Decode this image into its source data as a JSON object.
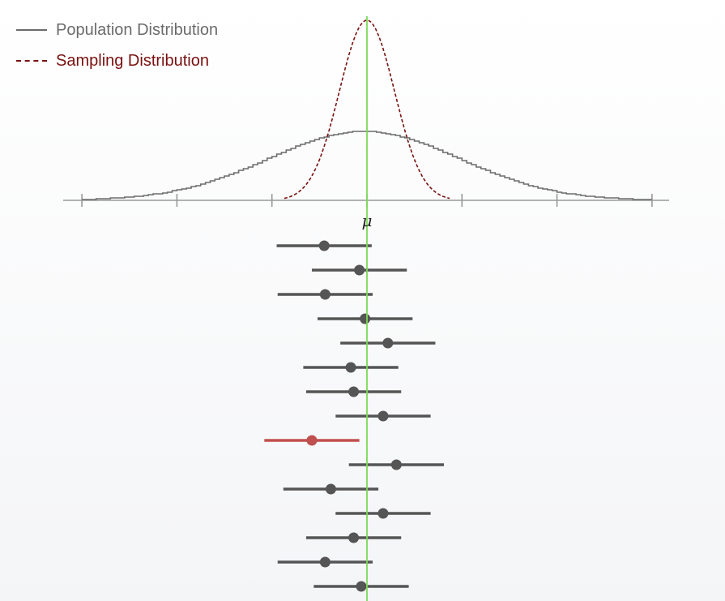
{
  "legend": {
    "population_label": "Population Distribution",
    "sampling_label": "Sampling Distribution"
  },
  "colors": {
    "population": "#6b6b6b",
    "sampling": "#7a1010",
    "mean_line": "#7ed957",
    "interval": "#555555",
    "interval_miss": "#c0504d",
    "axis": "#999999"
  },
  "chart_data": {
    "type": "scatter",
    "mu_label": "μ",
    "x_range": [
      -3,
      3
    ],
    "population_sd": 1,
    "sampling_sd": 0.29,
    "interval_half_width": 0.5,
    "axis_ticks": [
      -3,
      -2,
      -1,
      0,
      1,
      2,
      3
    ],
    "intervals": [
      {
        "mean": -0.45,
        "contains_mu": true
      },
      {
        "mean": -0.08,
        "contains_mu": true
      },
      {
        "mean": -0.44,
        "contains_mu": true
      },
      {
        "mean": -0.02,
        "contains_mu": true
      },
      {
        "mean": 0.22,
        "contains_mu": true
      },
      {
        "mean": -0.17,
        "contains_mu": true
      },
      {
        "mean": -0.14,
        "contains_mu": true
      },
      {
        "mean": 0.17,
        "contains_mu": true
      },
      {
        "mean": -0.58,
        "contains_mu": false
      },
      {
        "mean": 0.31,
        "contains_mu": true
      },
      {
        "mean": -0.38,
        "contains_mu": true
      },
      {
        "mean": 0.17,
        "contains_mu": true
      },
      {
        "mean": -0.14,
        "contains_mu": true
      },
      {
        "mean": -0.44,
        "contains_mu": true
      },
      {
        "mean": -0.06,
        "contains_mu": true
      }
    ]
  }
}
